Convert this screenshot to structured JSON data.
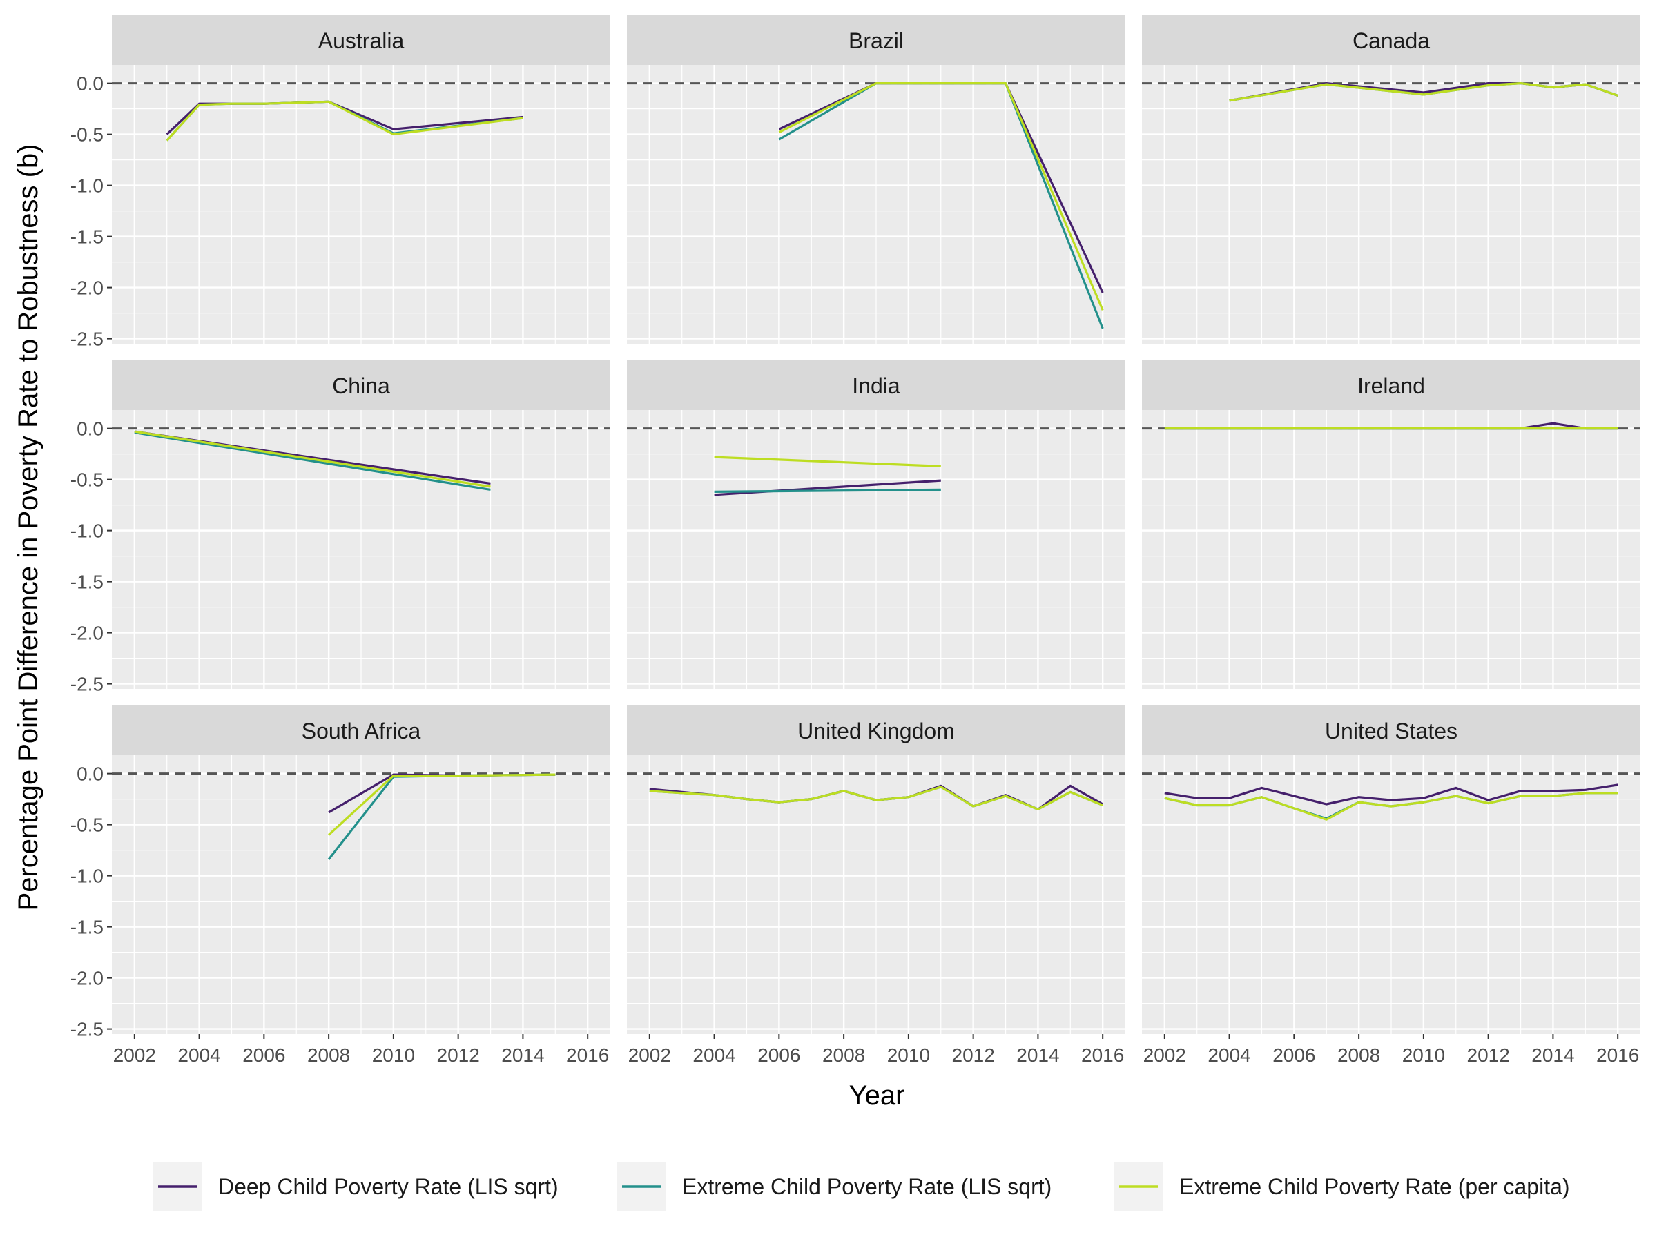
{
  "chart_data": {
    "type": "line",
    "xlabel": "Year",
    "ylabel": "Percentage Point Difference in Poverty Rate to Robustness (b)",
    "xlim": [
      2001.3,
      2016.7
    ],
    "ylim": [
      -2.55,
      0.18
    ],
    "x_ticks": [
      2002,
      2004,
      2006,
      2008,
      2010,
      2012,
      2014,
      2016
    ],
    "x_tick_labels": [
      "2002",
      "2004",
      "2006",
      "2008",
      "2010",
      "2012",
      "2014",
      "2016"
    ],
    "y_ticks": [
      0.0,
      -0.5,
      -1.0,
      -1.5,
      -2.0,
      -2.5
    ],
    "y_tick_labels": [
      "0.0",
      "-0.5",
      "-1.0",
      "-1.5",
      "-2.0",
      "-2.5"
    ],
    "reference_line": {
      "y": 0,
      "style": "dashed"
    },
    "grid": true,
    "legend_position": "bottom",
    "series_meta": [
      {
        "name": "Deep Child Poverty Rate (LIS sqrt)",
        "color": "#45206c"
      },
      {
        "name": "Extreme Child Poverty Rate (LIS sqrt)",
        "color": "#23908b"
      },
      {
        "name": "Extreme Child Poverty Rate (per capita)",
        "color": "#bddd22"
      }
    ],
    "panels": [
      {
        "title": "Australia",
        "series": [
          {
            "x": [
              2003,
              2004,
              2005,
              2006,
              2007,
              2008,
              2010,
              2014
            ],
            "y": [
              -0.5,
              -0.2,
              -0.2,
              -0.2,
              -0.19,
              -0.18,
              -0.45,
              -0.33
            ]
          },
          {
            "x": [
              2003,
              2004,
              2005,
              2006,
              2007,
              2008,
              2010,
              2014
            ],
            "y": [
              -0.56,
              -0.21,
              -0.2,
              -0.2,
              -0.19,
              -0.18,
              -0.49,
              -0.34
            ]
          },
          {
            "x": [
              2003,
              2004,
              2005,
              2006,
              2007,
              2008,
              2010,
              2014
            ],
            "y": [
              -0.56,
              -0.21,
              -0.2,
              -0.2,
              -0.19,
              -0.18,
              -0.5,
              -0.34
            ]
          }
        ]
      },
      {
        "title": "Brazil",
        "series": [
          {
            "x": [
              2006,
              2009,
              2011,
              2013,
              2016
            ],
            "y": [
              -0.45,
              0.0,
              0.0,
              0.0,
              -2.05
            ]
          },
          {
            "x": [
              2006,
              2009,
              2011,
              2013,
              2016
            ],
            "y": [
              -0.55,
              0.0,
              0.0,
              0.0,
              -2.4
            ]
          },
          {
            "x": [
              2006,
              2009,
              2011,
              2013,
              2016
            ],
            "y": [
              -0.48,
              0.0,
              0.0,
              0.0,
              -2.22
            ]
          }
        ]
      },
      {
        "title": "Canada",
        "series": [
          {
            "x": [
              2004,
              2007,
              2010,
              2012,
              2013,
              2014,
              2015,
              2016
            ],
            "y": [
              -0.17,
              0.0,
              -0.09,
              0.0,
              0.0,
              -0.04,
              -0.01,
              -0.12
            ]
          },
          {
            "x": [
              2004,
              2007,
              2010,
              2012,
              2013,
              2014,
              2015,
              2016
            ],
            "y": [
              -0.17,
              -0.01,
              -0.11,
              -0.02,
              0.0,
              -0.04,
              -0.01,
              -0.12
            ]
          },
          {
            "x": [
              2004,
              2007,
              2010,
              2012,
              2013,
              2014,
              2015,
              2016
            ],
            "y": [
              -0.17,
              -0.01,
              -0.11,
              -0.02,
              0.0,
              -0.04,
              -0.01,
              -0.12
            ]
          }
        ]
      },
      {
        "title": "China",
        "series": [
          {
            "x": [
              2002,
              2013
            ],
            "y": [
              -0.03,
              -0.54
            ]
          },
          {
            "x": [
              2002,
              2013
            ],
            "y": [
              -0.04,
              -0.6
            ]
          },
          {
            "x": [
              2002,
              2013
            ],
            "y": [
              -0.03,
              -0.57
            ]
          }
        ]
      },
      {
        "title": "India",
        "series": [
          {
            "x": [
              2004,
              2011
            ],
            "y": [
              -0.65,
              -0.51
            ]
          },
          {
            "x": [
              2004,
              2011
            ],
            "y": [
              -0.62,
              -0.6
            ]
          },
          {
            "x": [
              2004,
              2011
            ],
            "y": [
              -0.28,
              -0.37
            ]
          }
        ]
      },
      {
        "title": "Ireland",
        "series": [
          {
            "x": [
              2002,
              2004,
              2006,
              2008,
              2010,
              2012,
              2013,
              2014,
              2015,
              2016
            ],
            "y": [
              0.0,
              0.0,
              0.0,
              0.0,
              0.0,
              0.0,
              0.0,
              0.05,
              0.0,
              0.0
            ]
          },
          {
            "x": [
              2002,
              2004,
              2006,
              2008,
              2010,
              2012,
              2013,
              2014,
              2015,
              2016
            ],
            "y": [
              0.0,
              0.0,
              0.0,
              0.0,
              0.0,
              0.0,
              0.0,
              0.0,
              0.0,
              0.0
            ]
          },
          {
            "x": [
              2002,
              2004,
              2006,
              2008,
              2010,
              2012,
              2013,
              2014,
              2015,
              2016
            ],
            "y": [
              0.0,
              0.0,
              0.0,
              0.0,
              0.0,
              0.0,
              0.0,
              0.0,
              0.0,
              0.0
            ]
          }
        ]
      },
      {
        "title": "South Africa",
        "series": [
          {
            "x": [
              2008,
              2010,
              2012,
              2015
            ],
            "y": [
              -0.38,
              -0.01,
              -0.02,
              -0.01
            ]
          },
          {
            "x": [
              2008,
              2010,
              2012,
              2015
            ],
            "y": [
              -0.84,
              -0.03,
              -0.02,
              -0.01
            ]
          },
          {
            "x": [
              2008,
              2010,
              2012,
              2015
            ],
            "y": [
              -0.6,
              -0.02,
              -0.02,
              -0.01
            ]
          }
        ]
      },
      {
        "title": "United Kingdom",
        "series": [
          {
            "x": [
              2002,
              2003,
              2004,
              2005,
              2006,
              2007,
              2008,
              2009,
              2010,
              2011,
              2012,
              2013,
              2014,
              2015,
              2016
            ],
            "y": [
              -0.15,
              -0.18,
              -0.21,
              -0.25,
              -0.28,
              -0.25,
              -0.17,
              -0.26,
              -0.23,
              -0.12,
              -0.32,
              -0.21,
              -0.35,
              -0.12,
              -0.3
            ]
          },
          {
            "x": [
              2002,
              2003,
              2004,
              2005,
              2006,
              2007,
              2008,
              2009,
              2010,
              2011,
              2012,
              2013,
              2014,
              2015,
              2016
            ],
            "y": [
              -0.17,
              -0.19,
              -0.21,
              -0.25,
              -0.28,
              -0.25,
              -0.17,
              -0.26,
              -0.23,
              -0.13,
              -0.32,
              -0.22,
              -0.35,
              -0.18,
              -0.31
            ]
          },
          {
            "x": [
              2002,
              2003,
              2004,
              2005,
              2006,
              2007,
              2008,
              2009,
              2010,
              2011,
              2012,
              2013,
              2014,
              2015,
              2016
            ],
            "y": [
              -0.17,
              -0.19,
              -0.21,
              -0.25,
              -0.28,
              -0.25,
              -0.17,
              -0.26,
              -0.23,
              -0.13,
              -0.32,
              -0.22,
              -0.35,
              -0.18,
              -0.31
            ]
          }
        ]
      },
      {
        "title": "United States",
        "series": [
          {
            "x": [
              2002,
              2003,
              2004,
              2005,
              2006,
              2007,
              2008,
              2009,
              2010,
              2011,
              2012,
              2013,
              2014,
              2015,
              2016
            ],
            "y": [
              -0.19,
              -0.24,
              -0.24,
              -0.14,
              -0.22,
              -0.3,
              -0.23,
              -0.26,
              -0.24,
              -0.14,
              -0.26,
              -0.17,
              -0.17,
              -0.16,
              -0.11
            ]
          },
          {
            "x": [
              2002,
              2003,
              2004,
              2005,
              2006,
              2007,
              2008,
              2009,
              2010,
              2011,
              2012,
              2013,
              2014,
              2015,
              2016
            ],
            "y": [
              -0.24,
              -0.31,
              -0.31,
              -0.23,
              -0.34,
              -0.44,
              -0.28,
              -0.32,
              -0.28,
              -0.22,
              -0.29,
              -0.22,
              -0.22,
              -0.19,
              -0.19
            ]
          },
          {
            "x": [
              2002,
              2003,
              2004,
              2005,
              2006,
              2007,
              2008,
              2009,
              2010,
              2011,
              2012,
              2013,
              2014,
              2015,
              2016
            ],
            "y": [
              -0.24,
              -0.31,
              -0.31,
              -0.23,
              -0.34,
              -0.45,
              -0.28,
              -0.32,
              -0.28,
              -0.22,
              -0.29,
              -0.22,
              -0.22,
              -0.19,
              -0.19
            ]
          }
        ]
      }
    ]
  }
}
